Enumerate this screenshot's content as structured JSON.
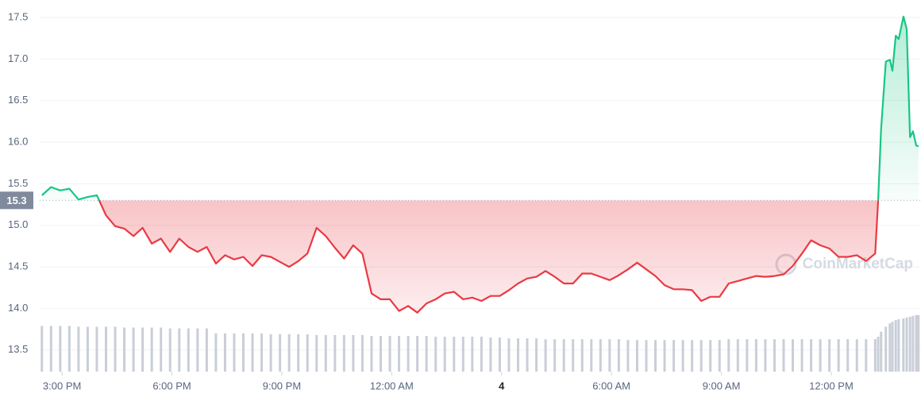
{
  "chart_data": {
    "type": "line",
    "watermark": "CoinMarketCap",
    "baseline": 15.3,
    "up_color": "#16c784",
    "down_color": "#ea3943",
    "volume_color": "#c9ced8",
    "grid": true,
    "xlim": [
      14.39,
      38.45
    ],
    "xticks": [
      {
        "value": 15,
        "label": "3:00 PM"
      },
      {
        "value": 18,
        "label": "6:00 PM"
      },
      {
        "value": 21,
        "label": "9:00 PM"
      },
      {
        "value": 24,
        "label": "12:00 AM"
      },
      {
        "value": 27,
        "label": "4"
      },
      {
        "value": 30,
        "label": "6:00 AM"
      },
      {
        "value": 33,
        "label": "9:00 AM"
      },
      {
        "value": 36,
        "label": "12:00 PM"
      }
    ],
    "ylim": [
      13.24,
      17.71
    ],
    "yticks": [
      13.5,
      {
        "value": 14,
        "label": "14.0"
      },
      14.5,
      {
        "value": 15,
        "label": "15.0"
      },
      15.5,
      {
        "value": 16,
        "label": "16.0"
      },
      16.5,
      {
        "value": 17,
        "label": "17.0"
      },
      17.5
    ],
    "x": [
      14.45,
      14.7,
      14.95,
      15.2,
      15.45,
      15.7,
      15.95,
      16.2,
      16.45,
      16.7,
      16.95,
      17.2,
      17.45,
      17.7,
      17.95,
      18.2,
      18.45,
      18.7,
      18.95,
      19.2,
      19.45,
      19.7,
      19.95,
      20.2,
      20.45,
      20.7,
      20.95,
      21.2,
      21.45,
      21.7,
      21.95,
      22.2,
      22.45,
      22.7,
      22.95,
      23.2,
      23.45,
      23.7,
      23.95,
      24.2,
      24.45,
      24.7,
      24.95,
      25.2,
      25.45,
      25.7,
      25.95,
      26.2,
      26.45,
      26.7,
      26.95,
      27.2,
      27.45,
      27.7,
      27.95,
      28.2,
      28.45,
      28.7,
      28.95,
      29.2,
      29.45,
      29.7,
      29.95,
      30.2,
      30.45,
      30.7,
      30.95,
      31.2,
      31.45,
      31.7,
      31.95,
      32.2,
      32.45,
      32.7,
      32.95,
      33.2,
      33.45,
      33.7,
      33.95,
      34.2,
      34.45,
      34.7,
      34.95,
      35.2,
      35.45,
      35.7,
      35.95,
      36.2,
      36.45,
      36.7,
      36.95,
      37.2,
      37.28,
      37.36,
      37.49,
      37.6,
      37.67,
      37.76,
      37.84,
      37.97,
      38.06,
      38.15,
      38.23,
      38.32,
      38.38
    ],
    "values": [
      15.36,
      15.46,
      15.42,
      15.44,
      15.31,
      15.34,
      15.36,
      15.12,
      14.99,
      14.96,
      14.87,
      14.97,
      14.78,
      14.84,
      14.68,
      14.84,
      14.74,
      14.68,
      14.74,
      14.54,
      14.64,
      14.59,
      14.62,
      14.51,
      14.64,
      14.62,
      14.56,
      14.5,
      14.57,
      14.66,
      14.97,
      14.87,
      14.73,
      14.6,
      14.76,
      14.66,
      14.18,
      14.11,
      14.11,
      13.97,
      14.03,
      13.95,
      14.06,
      14.11,
      14.18,
      14.2,
      14.11,
      14.13,
      14.09,
      14.15,
      14.15,
      14.22,
      14.3,
      14.36,
      14.38,
      14.45,
      14.38,
      14.3,
      14.3,
      14.42,
      14.42,
      14.38,
      14.34,
      14.4,
      14.47,
      14.55,
      14.47,
      14.39,
      14.28,
      14.23,
      14.23,
      14.22,
      14.09,
      14.14,
      14.14,
      14.3,
      14.33,
      14.36,
      14.39,
      14.38,
      14.39,
      14.41,
      14.51,
      14.66,
      14.82,
      14.76,
      14.72,
      14.62,
      14.62,
      14.64,
      14.57,
      14.66,
      15.29,
      16.15,
      16.97,
      16.99,
      16.86,
      17.28,
      17.24,
      17.51,
      17.36,
      16.06,
      16.13,
      15.96,
      15.95
    ],
    "volume": [
      13.79,
      13.79,
      13.79,
      13.79,
      13.78,
      13.78,
      13.78,
      13.78,
      13.78,
      13.77,
      13.77,
      13.77,
      13.77,
      13.77,
      13.76,
      13.76,
      13.76,
      13.76,
      13.76,
      13.7,
      13.7,
      13.7,
      13.7,
      13.7,
      13.7,
      13.69,
      13.69,
      13.69,
      13.69,
      13.69,
      13.68,
      13.68,
      13.68,
      13.68,
      13.68,
      13.68,
      13.67,
      13.67,
      13.67,
      13.67,
      13.67,
      13.67,
      13.67,
      13.66,
      13.66,
      13.66,
      13.66,
      13.66,
      13.66,
      13.65,
      13.65,
      13.64,
      13.64,
      13.64,
      13.64,
      13.63,
      13.63,
      13.63,
      13.63,
      13.63,
      13.63,
      13.63,
      13.63,
      13.63,
      13.62,
      13.62,
      13.62,
      13.62,
      13.62,
      13.62,
      13.62,
      13.62,
      13.62,
      13.62,
      13.62,
      13.63,
      13.63,
      13.63,
      13.63,
      13.63,
      13.63,
      13.63,
      13.63,
      13.63,
      13.63,
      13.63,
      13.63,
      13.63,
      13.63,
      13.63,
      13.63,
      13.63,
      13.66,
      13.72,
      13.78,
      13.82,
      13.84,
      13.86,
      13.87,
      13.88,
      13.89,
      13.9,
      13.91,
      13.92,
      13.92
    ]
  }
}
